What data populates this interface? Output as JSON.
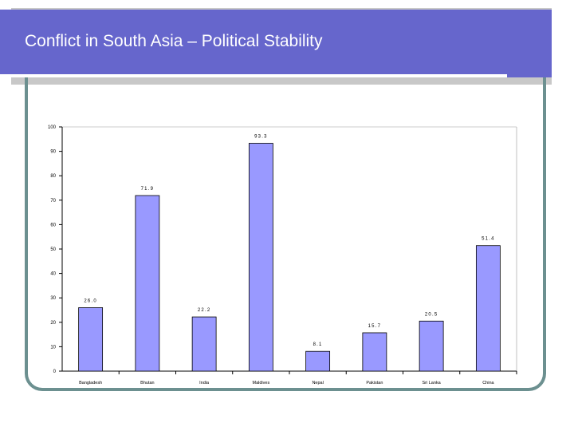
{
  "slide": {
    "title": "Conflict in South Asia – Political Stability"
  },
  "colors": {
    "title_bar": "#6666cc",
    "bar_fill": "#9999ff",
    "frame": "#6c9090"
  },
  "chart_data": {
    "type": "bar",
    "title": "",
    "xlabel": "",
    "ylabel": "",
    "ylim": [
      0,
      100
    ],
    "yticks": [
      0,
      10,
      20,
      30,
      40,
      50,
      60,
      70,
      80,
      90,
      100
    ],
    "categories": [
      "Bangladesh",
      "Bhutan",
      "India",
      "Maldives",
      "Nepal",
      "Pakistan",
      "Sri Lanka",
      "China"
    ],
    "values": [
      26.0,
      71.9,
      22.2,
      93.3,
      8.1,
      15.7,
      20.5,
      51.4
    ],
    "data_labels": [
      "26.0",
      "71.9",
      "22.2",
      "93.3",
      "8.1",
      "15.7",
      "20.5",
      "51.4"
    ],
    "grid": false,
    "legend": "none"
  }
}
